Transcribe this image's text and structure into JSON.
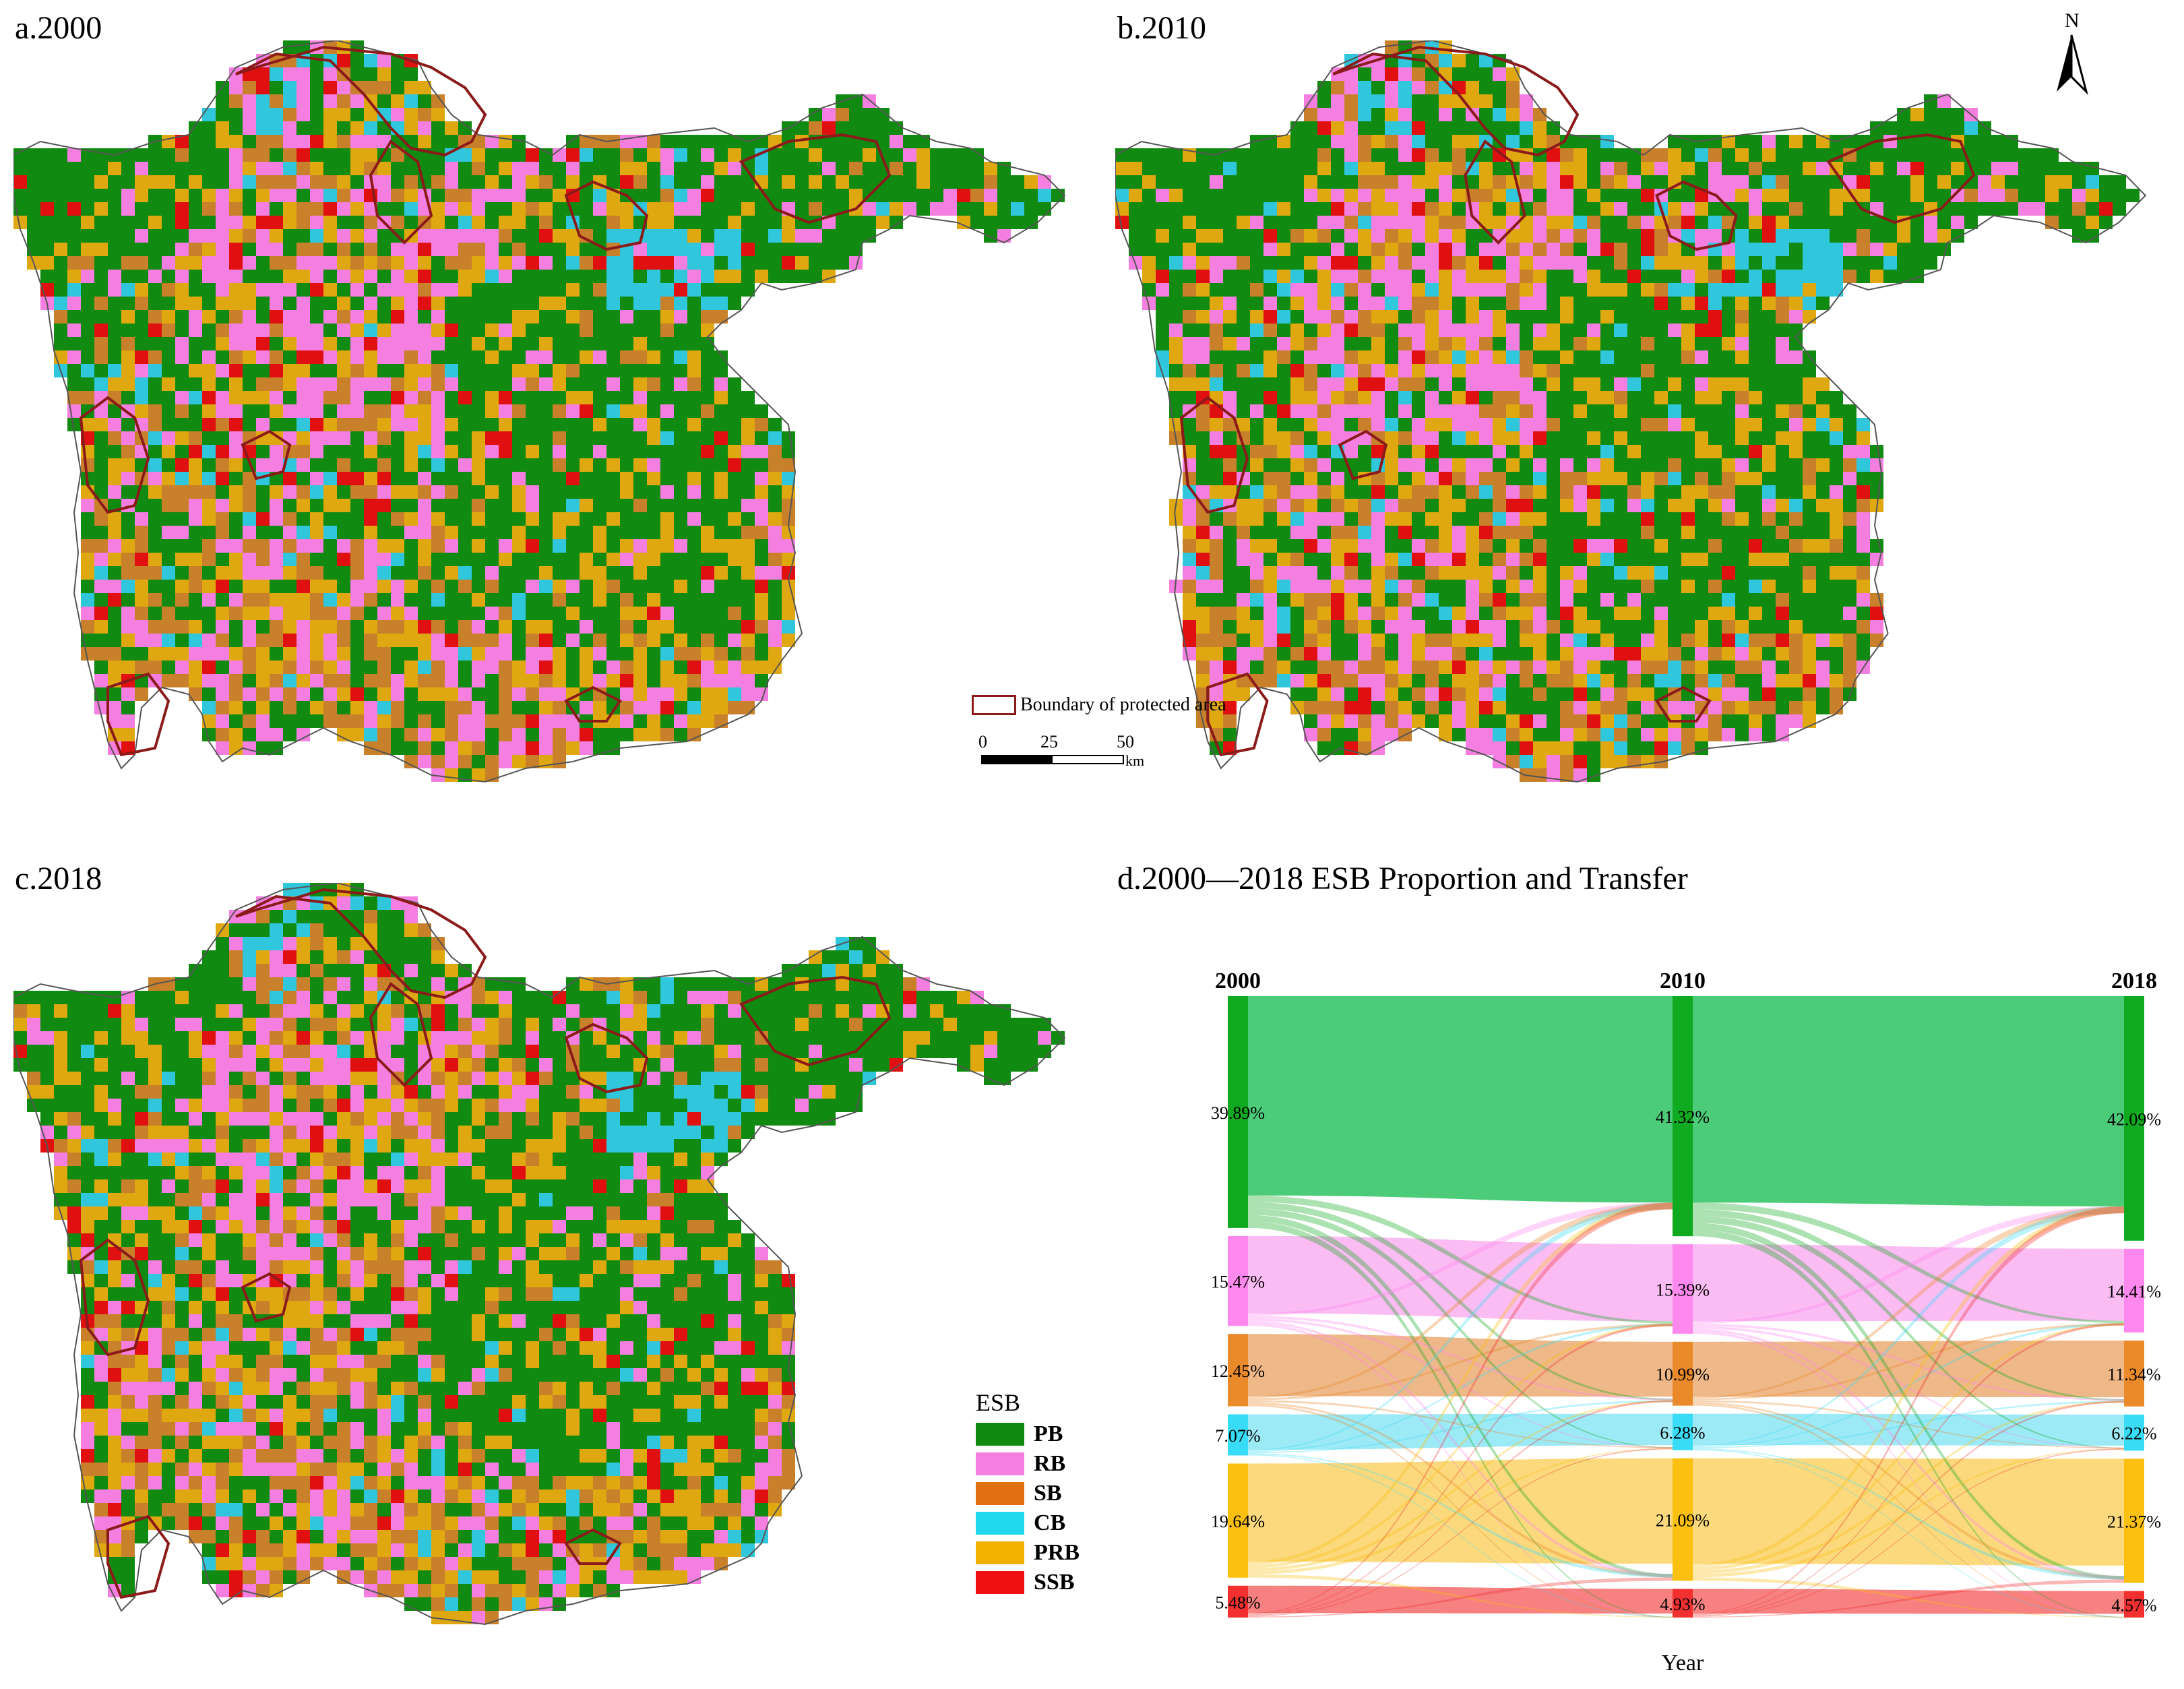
{
  "panels": {
    "a": "a.2000",
    "b": "b.2010",
    "c": "c.2018",
    "d": "d.2000—2018 ESB Proportion and Transfer"
  },
  "north_arrow": {
    "label": "N"
  },
  "protected_area_legend": {
    "label": "Boundary of protected area",
    "color": "#8b1a1a"
  },
  "scale_bar": {
    "ticks": [
      "0",
      "25",
      "50"
    ],
    "unit": "km"
  },
  "legend": {
    "title": "ESB",
    "items": [
      {
        "label": "PB",
        "color": "#108a10"
      },
      {
        "label": "RB",
        "color": "#f47fe0"
      },
      {
        "label": "SB",
        "color": "#e07010"
      },
      {
        "label": "CB",
        "color": "#20d8ee"
      },
      {
        "label": "PRB",
        "color": "#f2b000"
      },
      {
        "label": "SSB",
        "color": "#ee1010"
      }
    ]
  },
  "map_colors": {
    "PB": "#108a10",
    "RB": "#f47fe0",
    "SB": "#c8802a",
    "CB": "#30c6dc",
    "PRB": "#e0a810",
    "SSB": "#e01010"
  },
  "chart_data": {
    "type": "sankey",
    "title": "d.2000—2018 ESB Proportion and Transfer",
    "xlabel": "Year",
    "years": [
      "2000",
      "2010",
      "2018"
    ],
    "categories": [
      "PB",
      "RB",
      "SB",
      "CB",
      "PRB",
      "SSB"
    ],
    "colors": {
      "PB": {
        "node": "#10aa20",
        "flow": "#4ccb78"
      },
      "RB": {
        "node": "#ff88ee",
        "flow": "#fbbcf3"
      },
      "SB": {
        "node": "#ea8a2a",
        "flow": "#efb888"
      },
      "CB": {
        "node": "#38dcf6",
        "flow": "#9ceaf6"
      },
      "PRB": {
        "node": "#fbc010",
        "flow": "#fbd97c"
      },
      "SSB": {
        "node": "#f23030",
        "flow": "#f78080"
      }
    },
    "proportions": {
      "2000": [
        39.89,
        15.47,
        12.45,
        7.07,
        19.64,
        5.48
      ],
      "2010": [
        41.32,
        15.39,
        10.99,
        6.28,
        21.09,
        4.93
      ],
      "2018": [
        42.09,
        14.41,
        11.34,
        6.22,
        21.37,
        4.57
      ]
    },
    "labels": {
      "2000": [
        "39.89%",
        "15.47%",
        "12.45%",
        "7.07%",
        "19.64%",
        "5.48%"
      ],
      "2010": [
        "41.32%",
        "15.39%",
        "10.99%",
        "6.28%",
        "21.09%",
        "4.93%"
      ],
      "2018": [
        "42.09%",
        "14.41%",
        "11.34%",
        "6.22%",
        "21.37%",
        "4.57%"
      ]
    }
  }
}
